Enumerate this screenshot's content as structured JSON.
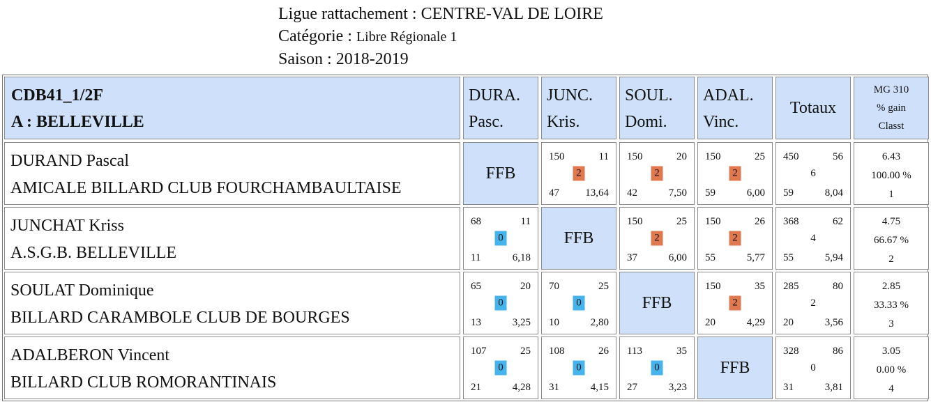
{
  "header": {
    "ligue_label": "Ligue rattachement : ",
    "ligue_value": "CENTRE-VAL DE LOIRE",
    "categorie_label": "Catégorie : ",
    "categorie_value": "Libre Régionale 1",
    "saison_label": "Saison : ",
    "saison_value": "2018-2019"
  },
  "table": {
    "team_code": "CDB41_1/2F",
    "team_name": "A : BELLEVILLE",
    "columns": [
      {
        "line1": "DURA.",
        "line2": "Pasc."
      },
      {
        "line1": "JUNC.",
        "line2": "Kris."
      },
      {
        "line1": "SOUL.",
        "line2": "Domi."
      },
      {
        "line1": "ADAL.",
        "line2": "Vinc."
      }
    ],
    "totals_label": "Totaux",
    "mg_header": {
      "line1": "MG 310",
      "line2": "% gain",
      "line3": "Classt"
    },
    "ffb_label": "FFB",
    "rows": [
      {
        "name": "DURAND Pascal",
        "club": "AMICALE BILLARD CLUB FOURCHAMBAULTAISE",
        "matches": [
          null,
          {
            "points": "150",
            "high": "11",
            "score": "2",
            "result": "win",
            "innings": "47",
            "avg": "13,64"
          },
          {
            "points": "150",
            "high": "20",
            "score": "2",
            "result": "win",
            "innings": "42",
            "avg": "7,50"
          },
          {
            "points": "150",
            "high": "25",
            "score": "2",
            "result": "win",
            "innings": "59",
            "avg": "6,00"
          }
        ],
        "totals": {
          "points": "450",
          "high": "56",
          "score": "6",
          "innings": "59",
          "avg": "8,04"
        },
        "mg": {
          "mg": "6.43",
          "pct": "100.00 %",
          "rank": "1"
        }
      },
      {
        "name": "JUNCHAT Kriss",
        "club": "A.S.G.B. BELLEVILLE",
        "matches": [
          {
            "points": "68",
            "high": "11",
            "score": "0",
            "result": "loss",
            "innings": "11",
            "avg": "6,18"
          },
          null,
          {
            "points": "150",
            "high": "25",
            "score": "2",
            "result": "win",
            "innings": "37",
            "avg": "6,00"
          },
          {
            "points": "150",
            "high": "26",
            "score": "2",
            "result": "win",
            "innings": "55",
            "avg": "5,77"
          }
        ],
        "totals": {
          "points": "368",
          "high": "62",
          "score": "4",
          "innings": "55",
          "avg": "5,94"
        },
        "mg": {
          "mg": "4.75",
          "pct": "66.67 %",
          "rank": "2"
        }
      },
      {
        "name": "SOULAT Dominique",
        "club": "BILLARD CARAMBOLE CLUB DE BOURGES",
        "matches": [
          {
            "points": "65",
            "high": "20",
            "score": "0",
            "result": "loss",
            "innings": "13",
            "avg": "3,25"
          },
          {
            "points": "70",
            "high": "25",
            "score": "0",
            "result": "loss",
            "innings": "10",
            "avg": "2,80"
          },
          null,
          {
            "points": "150",
            "high": "35",
            "score": "2",
            "result": "win",
            "innings": "20",
            "avg": "4,29"
          }
        ],
        "totals": {
          "points": "285",
          "high": "80",
          "score": "2",
          "innings": "20",
          "avg": "3,56"
        },
        "mg": {
          "mg": "2.85",
          "pct": "33.33 %",
          "rank": "3"
        }
      },
      {
        "name": "ADALBERON Vincent",
        "club": "BILLARD CLUB ROMORANTINAIS",
        "matches": [
          {
            "points": "107",
            "high": "25",
            "score": "0",
            "result": "loss",
            "innings": "21",
            "avg": "4,28"
          },
          {
            "points": "108",
            "high": "26",
            "score": "0",
            "result": "loss",
            "innings": "31",
            "avg": "4,15"
          },
          {
            "points": "113",
            "high": "35",
            "score": "0",
            "result": "loss",
            "innings": "27",
            "avg": "3,23"
          },
          null
        ],
        "totals": {
          "points": "328",
          "high": "86",
          "score": "0",
          "innings": "31",
          "avg": "3,81"
        },
        "mg": {
          "mg": "3.05",
          "pct": "0.00 %",
          "rank": "4"
        }
      }
    ]
  },
  "colors": {
    "header_bg": "#cfe1fa",
    "win_badge": "#e07850",
    "loss_badge": "#45b4ec"
  }
}
